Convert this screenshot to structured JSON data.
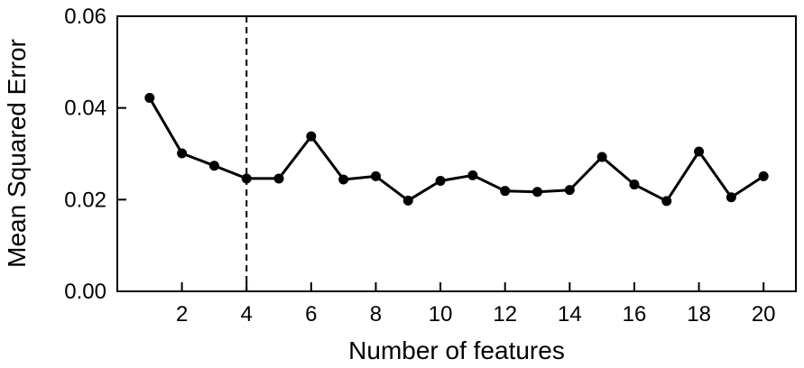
{
  "chart_data": {
    "type": "line",
    "title": "",
    "xlabel": "Number of features",
    "ylabel": "Mean Squared Error",
    "xlim": [
      0,
      21
    ],
    "ylim": [
      0.0,
      0.06
    ],
    "x_ticks": [
      2,
      4,
      6,
      8,
      10,
      12,
      14,
      16,
      18,
      20
    ],
    "y_ticks": [
      0.0,
      0.02,
      0.04,
      0.06
    ],
    "y_tick_labels": [
      "0.00",
      "0.02",
      "0.04",
      "0.06"
    ],
    "x_tick_labels": [
      "2",
      "4",
      "6",
      "8",
      "10",
      "12",
      "14",
      "16",
      "18",
      "20"
    ],
    "grid": false,
    "legend": "none",
    "reference_line": {
      "x": 4,
      "style": "dashed"
    },
    "series": [
      {
        "color": "#000000",
        "markers": true,
        "x": [
          1,
          2,
          3,
          4,
          5,
          6,
          7,
          8,
          9,
          10,
          11,
          12,
          13,
          14,
          15,
          16,
          17,
          18,
          19,
          20
        ],
        "y": [
          0.0422,
          0.0301,
          0.0274,
          0.0246,
          0.0246,
          0.0338,
          0.0244,
          0.0251,
          0.0198,
          0.0241,
          0.0253,
          0.0219,
          0.0217,
          0.0221,
          0.0293,
          0.0233,
          0.0197,
          0.0305,
          0.0205,
          0.0251
        ]
      }
    ]
  }
}
